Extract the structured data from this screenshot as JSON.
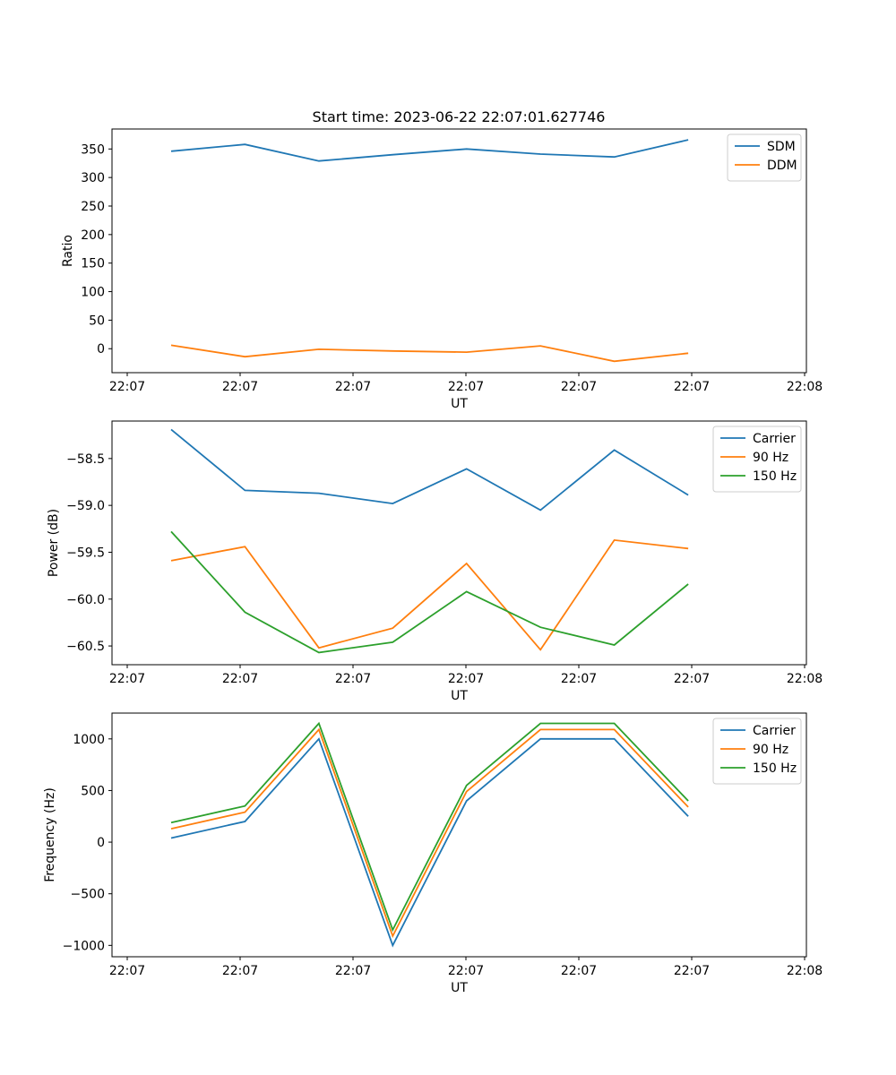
{
  "title": "Start time: 2023-06-22 22:07:01.627746",
  "x_ticks": [
    "22:07",
    "22:07",
    "22:07",
    "22:07",
    "22:07",
    "22:07",
    "22:08"
  ],
  "chart_data": [
    {
      "type": "line",
      "xlabel": "UT",
      "ylabel": "Ratio",
      "ylim": [
        -42,
        385
      ],
      "yticks": [
        0,
        50,
        100,
        150,
        200,
        250,
        300,
        350
      ],
      "ytick_labels": [
        "0",
        "50",
        "100",
        "150",
        "200",
        "250",
        "300",
        "350"
      ],
      "legend": "top-right",
      "x": [
        1,
        2,
        3,
        4,
        5,
        6,
        7,
        8
      ],
      "series": [
        {
          "name": "SDM",
          "color": "#1f77b4",
          "values": [
            346,
            358,
            329,
            340,
            350,
            341,
            336,
            366
          ]
        },
        {
          "name": "DDM",
          "color": "#ff7f0e",
          "values": [
            6,
            -14,
            -1,
            -4,
            -6,
            5,
            -22,
            -8
          ]
        }
      ]
    },
    {
      "type": "line",
      "xlabel": "UT",
      "ylabel": "Power (dB)",
      "ylim": [
        -60.7,
        -58.1
      ],
      "yticks": [
        -60.5,
        -60.0,
        -59.5,
        -59.0,
        -58.5
      ],
      "ytick_labels": [
        "−60.5",
        "−60.0",
        "−59.5",
        "−59.0",
        "−58.5"
      ],
      "legend": "top-right",
      "x": [
        1,
        2,
        3,
        4,
        5,
        6,
        7,
        8
      ],
      "series": [
        {
          "name": "Carrier",
          "color": "#1f77b4",
          "values": [
            -58.19,
            -58.84,
            -58.87,
            -58.98,
            -58.61,
            -59.05,
            -58.41,
            -58.89
          ]
        },
        {
          "name": "90 Hz",
          "color": "#ff7f0e",
          "values": [
            -59.59,
            -59.44,
            -60.52,
            -60.31,
            -59.62,
            -60.54,
            -59.37,
            -59.46
          ]
        },
        {
          "name": "150 Hz",
          "color": "#2ca02c",
          "values": [
            -59.28,
            -60.14,
            -60.57,
            -60.46,
            -59.92,
            -60.3,
            -60.49,
            -59.84
          ]
        }
      ]
    },
    {
      "type": "line",
      "xlabel": "UT",
      "ylabel": "Frequency (Hz)",
      "ylim": [
        -1110,
        1250
      ],
      "yticks": [
        -1000,
        -500,
        0,
        500,
        1000
      ],
      "ytick_labels": [
        "−1000",
        "−500",
        "0",
        "500",
        "1000"
      ],
      "legend": "top-right",
      "x": [
        1,
        2,
        3,
        4,
        5,
        6,
        7,
        8
      ],
      "series": [
        {
          "name": "Carrier",
          "color": "#1f77b4",
          "values": [
            40,
            200,
            1000,
            -1000,
            400,
            1000,
            1000,
            250
          ]
        },
        {
          "name": "90 Hz",
          "color": "#ff7f0e",
          "values": [
            130,
            290,
            1090,
            -910,
            490,
            1090,
            1090,
            340
          ]
        },
        {
          "name": "150 Hz",
          "color": "#2ca02c",
          "values": [
            190,
            350,
            1150,
            -850,
            550,
            1150,
            1150,
            400
          ]
        }
      ]
    }
  ]
}
